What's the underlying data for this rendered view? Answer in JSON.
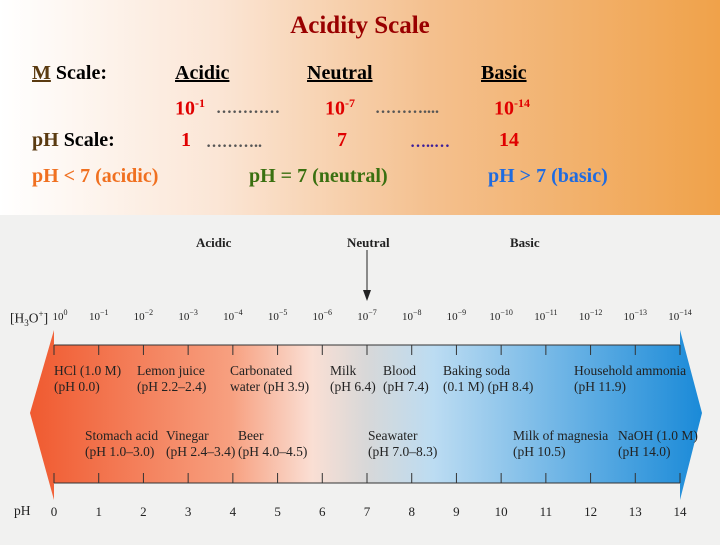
{
  "title": "Acidity Scale",
  "m_scale": {
    "label_m": "M",
    "label_rest": " Scale:",
    "acidic": "Acidic",
    "neutral": "Neutral",
    "basic": "Basic",
    "v1_base": "10",
    "v1_exp": "-1",
    "dots1": "…………",
    "v2_base": "10",
    "v2_exp": "-7",
    "dots2": "………....",
    "v3_base": "10",
    "v3_exp": "-14"
  },
  "ph_scale": {
    "label_ph": "pH",
    "label_rest": " Scale:",
    "v1": "1",
    "dots1": "………..",
    "v2": "7",
    "dots2": "…..…",
    "v3": "14"
  },
  "summary": {
    "acidic": "pH < 7 (acidic)",
    "neutral": "pH = 7 (neutral)",
    "basic": "pH > 7 (basic)"
  },
  "diagram": {
    "header_acidic": "Acidic",
    "header_neutral": "Neutral",
    "header_basic": "Basic",
    "conc_label": "[H3O+]",
    "ph_label": "pH",
    "ph_values": [
      0,
      1,
      2,
      3,
      4,
      5,
      6,
      7,
      8,
      9,
      10,
      11,
      12,
      13,
      14
    ],
    "items_top": [
      {
        "name": "HCl (1.0 M)",
        "ph": "(pH 0.0)"
      },
      {
        "name": "Lemon juice",
        "ph": "(pH 2.2–2.4)"
      },
      {
        "name": "Carbonated",
        "ph": "water (pH 3.9)"
      },
      {
        "name": "Milk",
        "ph": "(pH 6.4)"
      },
      {
        "name": "Blood",
        "ph": "(pH 7.4)"
      },
      {
        "name": "Baking soda",
        "ph": "(0.1 M) (pH 8.4)"
      },
      {
        "name": "Household ammonia",
        "ph": "(pH 11.9)"
      }
    ],
    "items_bottom": [
      {
        "name": "Stomach acid",
        "ph": "(pH 1.0–3.0)"
      },
      {
        "name": "Vinegar",
        "ph": "(pH 2.4–3.4)"
      },
      {
        "name": "Beer",
        "ph": "(pH 4.0–4.5)"
      },
      {
        "name": "Seawater",
        "ph": "(pH 7.0–8.3)"
      },
      {
        "name": "Milk of magnesia",
        "ph": "(pH 10.5)"
      },
      {
        "name": "NaOH (1.0 M)",
        "ph": "(pH 14.0)"
      }
    ]
  },
  "colors": {
    "acid": "#f05a30",
    "neutral": "#d8d8d8",
    "base": "#1a8ad8"
  }
}
